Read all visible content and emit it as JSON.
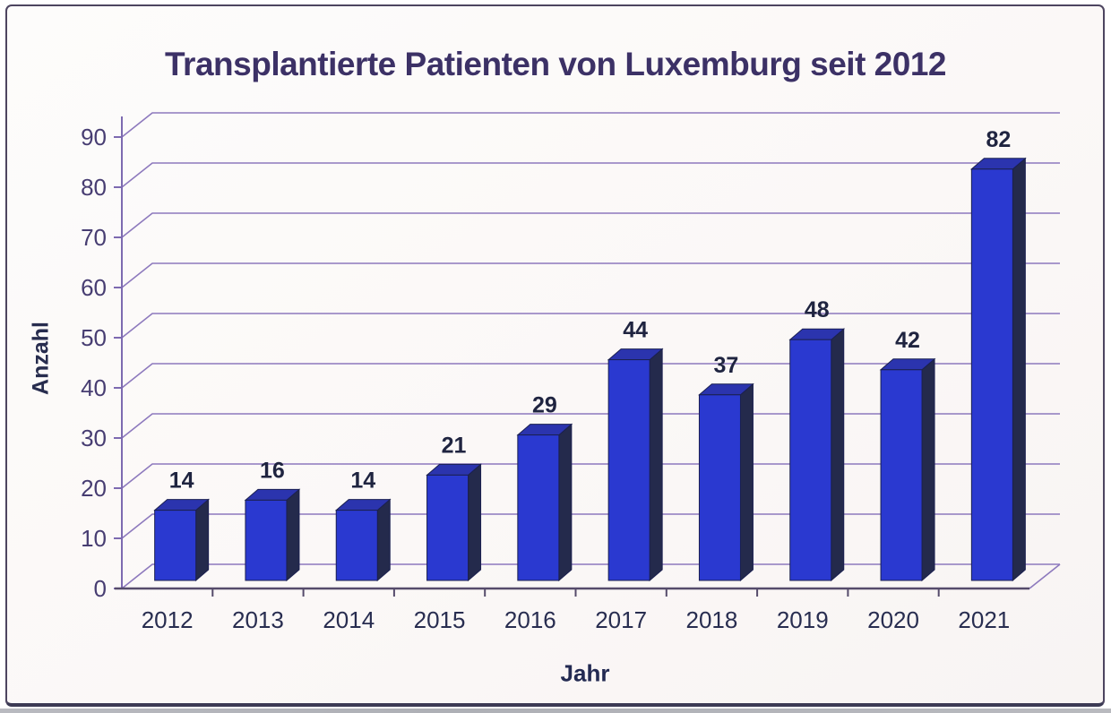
{
  "chart_data": {
    "type": "bar",
    "style": "3d-column",
    "title": "Transplantierte Patienten von Luxemburg seit 2012",
    "categories": [
      "2012",
      "2013",
      "2014",
      "2015",
      "2016",
      "2017",
      "2018",
      "2019",
      "2020",
      "2021"
    ],
    "values": [
      14,
      16,
      14,
      21,
      29,
      44,
      37,
      48,
      42,
      82
    ],
    "xlabel": "Jahr",
    "ylabel": "Anzahl",
    "ylim": [
      0,
      90
    ],
    "yticks": [
      0,
      10,
      20,
      30,
      40,
      50,
      60,
      70,
      80,
      90
    ],
    "grid": true,
    "legend": "none",
    "data_labels": true,
    "colors": {
      "bar_front": "#2a39d0",
      "bar_top": "#2b34ae",
      "bar_side": "#242a4c",
      "bar_outline": "#1b2050",
      "gridline": "#8d79bd",
      "y_axis": "#7d6ab0",
      "baseline": "#554b6b",
      "tick_label": "#473d72",
      "x_label": "#282d50",
      "value_label": "#1f2440",
      "title_color": "#3c3166"
    }
  }
}
